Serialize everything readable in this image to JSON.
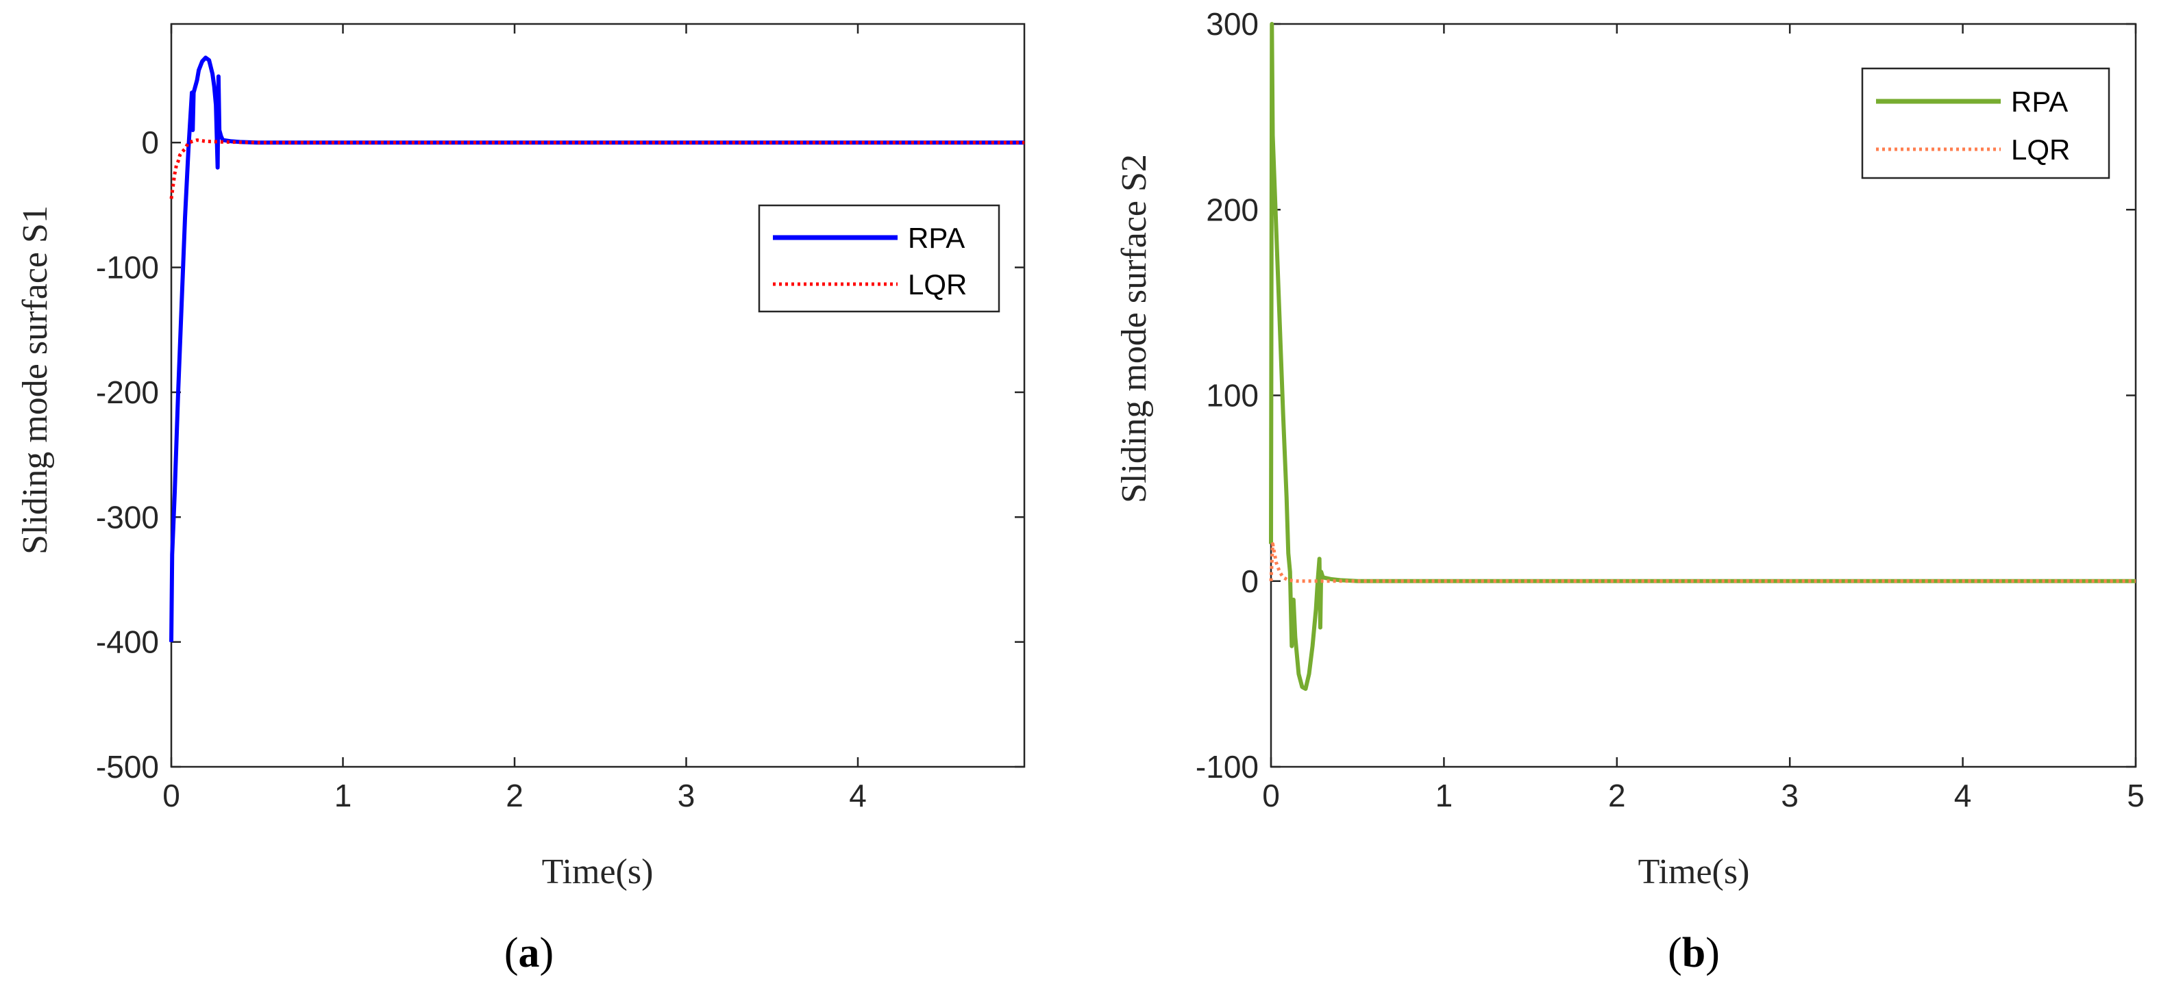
{
  "chart_data": [
    {
      "type": "line",
      "panel_label": "a",
      "xlabel": "Time(s)",
      "ylabel": "Sliding mode surface S1",
      "xlim": [
        0,
        4.97
      ],
      "ylim": [
        -500,
        95
      ],
      "xticks": [
        0,
        1,
        2,
        3,
        4
      ],
      "yticks": [
        -500,
        -400,
        -300,
        -200,
        -100,
        0
      ],
      "legend_position": "right-upper-middle",
      "grid": false,
      "series": [
        {
          "name": "RPA",
          "color": "#0000ff",
          "style": "solid",
          "x": [
            0,
            0.005,
            0.02,
            0.04,
            0.06,
            0.08,
            0.1,
            0.12,
            0.125,
            0.13,
            0.14,
            0.15,
            0.16,
            0.18,
            0.2,
            0.22,
            0.24,
            0.25,
            0.26,
            0.27,
            0.275,
            0.28,
            0.29,
            0.3,
            0.35,
            0.4,
            0.5,
            1,
            2,
            3,
            4,
            4.97
          ],
          "y": [
            -400,
            -330,
            -280,
            -200,
            -130,
            -60,
            -5,
            40,
            10,
            40,
            45,
            50,
            58,
            65,
            68,
            66,
            55,
            45,
            30,
            -20,
            53,
            10,
            5,
            2,
            1,
            0.5,
            0,
            0,
            0,
            0,
            0,
            0
          ]
        },
        {
          "name": "LQR",
          "color": "#ff0000",
          "style": "dotted",
          "x": [
            0,
            0.01,
            0.02,
            0.03,
            0.04,
            0.05,
            0.06,
            0.08,
            0.1,
            0.15,
            0.2,
            0.3,
            0.5,
            1,
            2,
            3,
            4,
            4.97
          ],
          "y": [
            -45,
            -35,
            -25,
            -18,
            -15,
            -10,
            -8,
            -5,
            0,
            2,
            1,
            0.5,
            0,
            0,
            0,
            0,
            0,
            0
          ]
        }
      ]
    },
    {
      "type": "line",
      "panel_label": "b",
      "xlabel": "Time(s)",
      "ylabel": "Sliding mode surface S2",
      "xlim": [
        0,
        5
      ],
      "ylim": [
        -100,
        300
      ],
      "xticks": [
        0,
        1,
        2,
        3,
        4,
        5
      ],
      "yticks": [
        -100,
        0,
        100,
        200,
        300
      ],
      "legend_position": "top-right",
      "grid": false,
      "series": [
        {
          "name": "RPA",
          "color": "#77ac30",
          "style": "solid",
          "x": [
            0,
            0.005,
            0.01,
            0.03,
            0.05,
            0.07,
            0.09,
            0.1,
            0.11,
            0.12,
            0.13,
            0.14,
            0.16,
            0.18,
            0.2,
            0.22,
            0.24,
            0.26,
            0.27,
            0.28,
            0.285,
            0.29,
            0.3,
            0.35,
            0.4,
            0.5,
            1,
            2,
            3,
            4,
            5
          ],
          "y": [
            20,
            300,
            240,
            190,
            140,
            90,
            45,
            15,
            5,
            -35,
            -10,
            -30,
            -50,
            -57,
            -58,
            -50,
            -35,
            -15,
            0,
            12,
            -25,
            5,
            2,
            1,
            0.5,
            0,
            0,
            0,
            0,
            0,
            0
          ]
        },
        {
          "name": "LQR",
          "color": "#ff7f50",
          "style": "dotted",
          "x": [
            0,
            0.01,
            0.02,
            0.03,
            0.05,
            0.07,
            0.1,
            0.15,
            0.2,
            0.3,
            0.5,
            1,
            2,
            3,
            4,
            5
          ],
          "y": [
            0,
            20,
            15,
            10,
            5,
            2,
            0.5,
            0,
            0,
            0,
            0,
            0,
            0,
            0,
            0,
            0
          ]
        }
      ]
    }
  ]
}
